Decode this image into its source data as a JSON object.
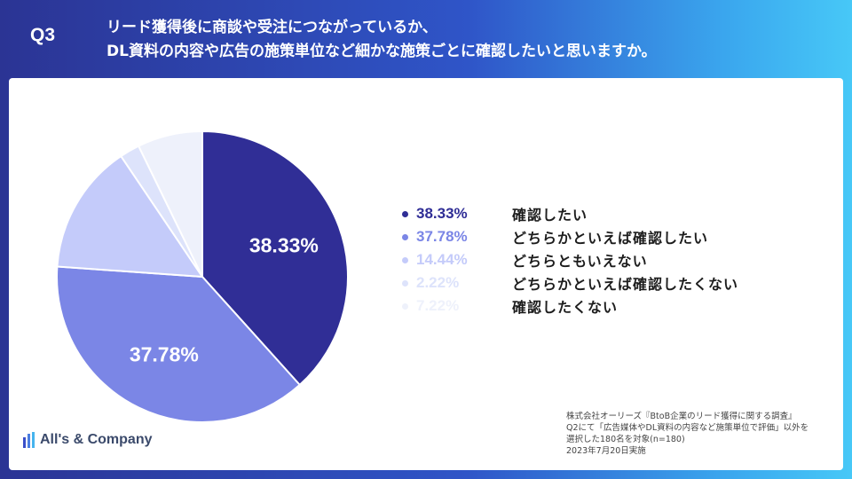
{
  "header": {
    "question_no": "Q3",
    "question_lines": [
      "リード獲得後に商談や受注につながっているか、",
      "DL資料の内容や広告の施策単位など細かな施策ごとに確認したいと思いますか。"
    ]
  },
  "chart_data": {
    "type": "pie",
    "title": "",
    "categories": [
      "確認したい",
      "どちらかといえば確認したい",
      "どちらともいえない",
      "どちらかといえば確認したくない",
      "確認したくない"
    ],
    "values": [
      38.33,
      37.78,
      14.44,
      2.22,
      7.22
    ],
    "value_labels": [
      "38.33%",
      "37.78%",
      "14.44%",
      "2.22%",
      "7.22%"
    ],
    "colors": [
      "#302e96",
      "#7b86e6",
      "#c4cbfa",
      "#dde3fb",
      "#eef1fb"
    ],
    "slice_labels_shown": [
      "38.33%",
      "37.78%"
    ],
    "start": "12 o'clock, clockwise",
    "legend_position": "right"
  },
  "logo": {
    "text": "All's & Company"
  },
  "source": {
    "lines": [
      "株式会社オーリーズ『BtoB企業のリード獲得に関する調査』",
      "Q2にて「広告媒体やDL資料の内容など施策単位で評価」以外を",
      "選択した180名を対象(n=180)",
      "2023年7月20日実施"
    ]
  }
}
